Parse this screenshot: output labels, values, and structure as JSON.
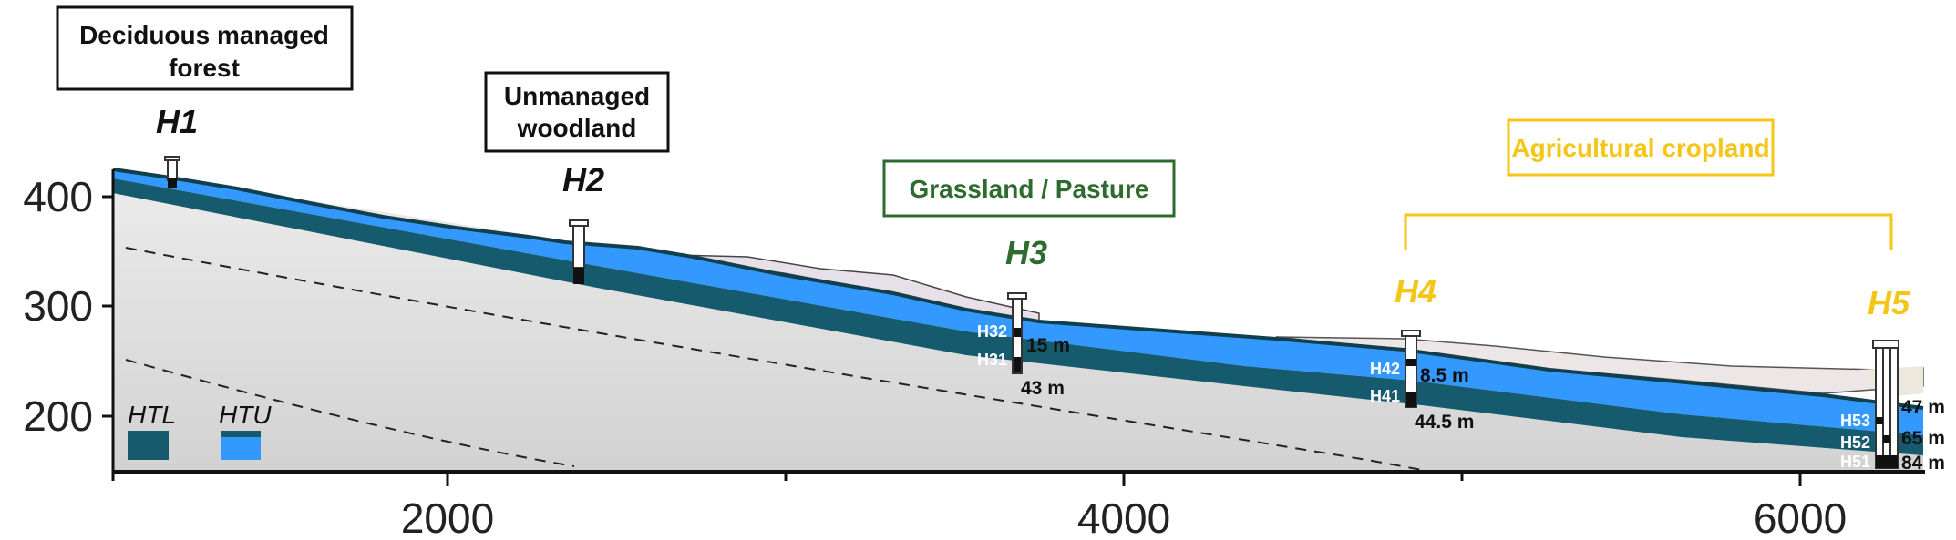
{
  "axis": {
    "y_ticks": [
      "400",
      "300",
      "200"
    ],
    "x_ticks": [
      "2000",
      "4000",
      "6000"
    ]
  },
  "land_use": {
    "forest": "Deciduous managed forest",
    "woodland": "Unmanaged woodland",
    "grassland": "Grassland / Pasture",
    "cropland": "Agricultural cropland"
  },
  "sites": {
    "h1": "H1",
    "h2": "H2",
    "h3": "H3",
    "h4": "H4",
    "h5": "H5"
  },
  "wells": {
    "h32": "H32",
    "h31": "H31",
    "h42": "H42",
    "h41": "H41",
    "h53": "H53",
    "h52": "H52",
    "h51": "H51"
  },
  "depths": {
    "h32": "15 m",
    "h31": "43 m",
    "h42": "8.5 m",
    "h41": "44.5 m",
    "h53": "47 m",
    "h52": "65 m",
    "h51": "84 m"
  },
  "legend": {
    "htl": "HTL",
    "htu": "HTU"
  },
  "colors": {
    "htl": "#165a6e",
    "htu": "#3399ff",
    "forest_label": "#111111",
    "grassland": "#2e6b2e",
    "cropland": "#f5c518"
  }
}
